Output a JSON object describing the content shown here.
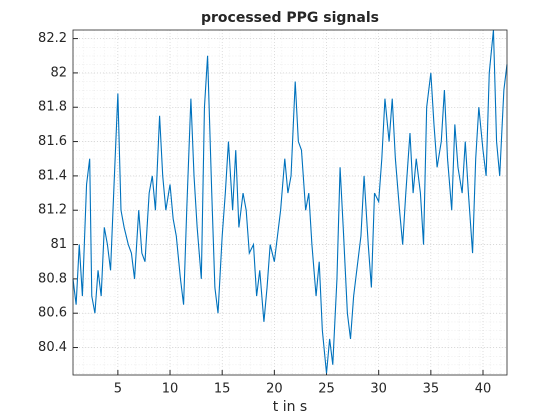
{
  "chart_data": {
    "type": "line",
    "title": "processed PPG signals",
    "x_label": "t in s",
    "x": [
      0.7,
      1,
      1.3,
      1.6,
      2,
      2.3,
      2.5,
      2.8,
      3.1,
      3.4,
      3.7,
      4,
      4.3,
      4.6,
      5,
      5.3,
      5.6,
      6,
      6.3,
      6.6,
      7,
      7.3,
      7.6,
      8,
      8.3,
      8.6,
      9,
      9.3,
      9.6,
      10,
      10.3,
      10.6,
      11,
      11.3,
      11.6,
      12,
      12.3,
      12.6,
      13,
      13.3,
      13.6,
      14,
      14.3,
      14.6,
      15,
      15.3,
      15.6,
      16,
      16.3,
      16.6,
      17,
      17.3,
      17.6,
      18,
      18.3,
      18.6,
      19,
      19.3,
      19.6,
      20,
      20.3,
      20.6,
      21,
      21.3,
      21.6,
      22,
      22.3,
      22.6,
      23,
      23.3,
      23.6,
      24,
      24.3,
      24.6,
      25,
      25.3,
      25.6,
      26,
      26.3,
      26.6,
      27,
      27.3,
      27.6,
      28,
      28.3,
      28.6,
      29,
      29.3,
      29.6,
      30,
      30.3,
      30.6,
      31,
      31.3,
      31.6,
      32,
      32.3,
      32.6,
      33,
      33.3,
      33.6,
      34,
      34.3,
      34.6,
      35,
      35.3,
      35.6,
      36,
      36.3,
      36.6,
      37,
      37.3,
      37.6,
      38,
      38.3,
      38.6,
      39,
      39.3,
      39.6,
      40,
      40.3,
      40.6,
      41,
      41.3,
      41.6,
      42,
      42.3
    ],
    "values": [
      80.8,
      80.65,
      81.0,
      80.7,
      81.35,
      81.5,
      80.7,
      80.6,
      80.85,
      80.7,
      81.1,
      81.0,
      80.85,
      81.3,
      81.88,
      81.2,
      81.1,
      81.0,
      80.95,
      80.8,
      81.2,
      80.95,
      80.9,
      81.3,
      81.4,
      81.2,
      81.75,
      81.4,
      81.2,
      81.35,
      81.15,
      81.05,
      80.8,
      80.65,
      81.2,
      81.85,
      81.4,
      81.1,
      80.8,
      81.8,
      82.1,
      81.3,
      80.75,
      80.6,
      81.05,
      81.3,
      81.6,
      81.2,
      81.55,
      81.1,
      81.3,
      81.2,
      80.95,
      81.0,
      80.7,
      80.85,
      80.55,
      80.75,
      81.0,
      80.9,
      81.05,
      81.2,
      81.5,
      81.3,
      81.4,
      81.95,
      81.6,
      81.55,
      81.2,
      81.3,
      81.0,
      80.7,
      80.9,
      80.5,
      80.25,
      80.45,
      80.3,
      80.8,
      81.45,
      81.1,
      80.6,
      80.45,
      80.7,
      80.9,
      81.05,
      81.4,
      81.0,
      80.75,
      81.3,
      81.25,
      81.5,
      81.85,
      81.6,
      81.85,
      81.5,
      81.2,
      81.0,
      81.3,
      81.65,
      81.3,
      81.5,
      81.3,
      81.0,
      81.8,
      82.0,
      81.7,
      81.45,
      81.6,
      81.9,
      81.5,
      81.2,
      81.7,
      81.45,
      81.3,
      81.6,
      81.3,
      80.95,
      81.5,
      81.8,
      81.55,
      81.4,
      82.0,
      82.25,
      81.6,
      81.4,
      81.9,
      82.05
    ],
    "color": "#0072bd",
    "xlim": [
      0.7,
      42.3
    ],
    "xticks": [
      5,
      10,
      15,
      20,
      25,
      30,
      35,
      40
    ],
    "ylim": [
      80.24,
      82.25
    ],
    "yticks": [
      80.4,
      80.6,
      80.8,
      81,
      81.2,
      81.4,
      81.6,
      81.8,
      82,
      82.2
    ],
    "grid": true
  }
}
